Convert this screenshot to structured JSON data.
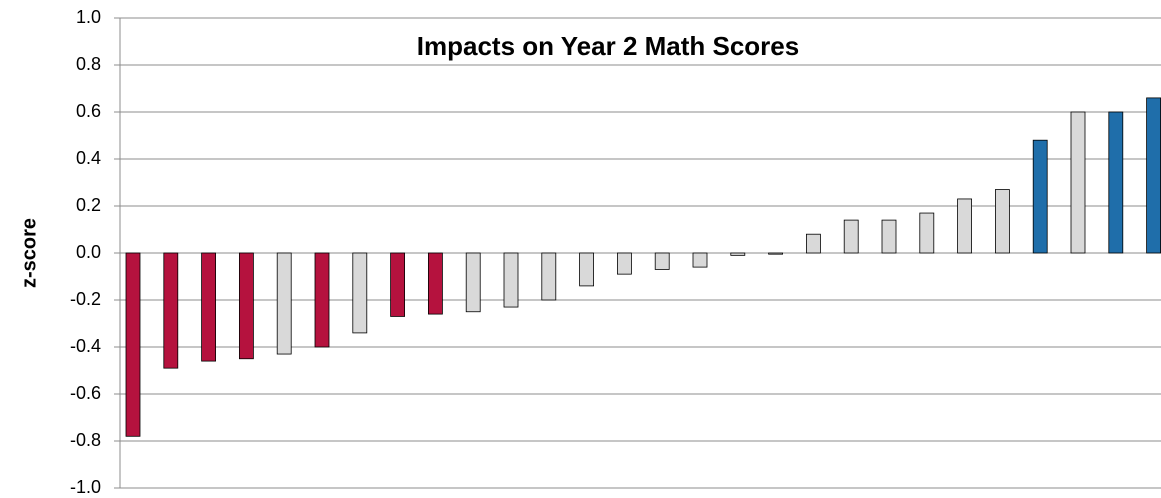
{
  "chart_data": {
    "type": "bar",
    "title": "Impacts on Year 2 Math Scores",
    "y_label": "z-score",
    "categories": [
      null,
      null,
      null,
      null,
      null,
      null,
      null,
      null,
      null,
      null,
      null,
      null,
      null,
      null,
      null,
      null,
      null,
      null,
      null,
      null,
      null,
      null,
      null,
      null,
      null,
      null,
      null,
      null
    ],
    "values": [
      -0.78,
      -0.49,
      -0.46,
      -0.45,
      -0.43,
      -0.4,
      -0.34,
      -0.27,
      -0.26,
      -0.25,
      -0.23,
      -0.2,
      -0.14,
      -0.09,
      -0.07,
      -0.06,
      -0.01,
      -0.005,
      0.08,
      0.14,
      0.14,
      0.17,
      0.23,
      0.27,
      0.48,
      0.6,
      0.6,
      0.66
    ],
    "colors": [
      "#b5123e",
      "#b5123e",
      "#b5123e",
      "#b5123e",
      "#d9d9d9",
      "#b5123e",
      "#d9d9d9",
      "#b5123e",
      "#b5123e",
      "#d9d9d9",
      "#d9d9d9",
      "#d9d9d9",
      "#d9d9d9",
      "#d9d9d9",
      "#d9d9d9",
      "#d9d9d9",
      "#d9d9d9",
      "#d9d9d9",
      "#d9d9d9",
      "#d9d9d9",
      "#d9d9d9",
      "#d9d9d9",
      "#d9d9d9",
      "#d9d9d9",
      "#1f6eaa",
      "#d9d9d9",
      "#1f6eaa",
      "#1f6eaa"
    ],
    "ylim": [
      -1.0,
      1.0
    ],
    "yticks": [
      {
        "value": -1.0,
        "label": "-1.0"
      },
      {
        "value": -0.8,
        "label": "-0.8"
      },
      {
        "value": -0.6,
        "label": "-0.6"
      },
      {
        "value": -0.4,
        "label": "-0.4"
      },
      {
        "value": -0.2,
        "label": "-0.2"
      },
      {
        "value": 0,
        "label": "0.0"
      },
      {
        "value": 0.2,
        "label": "0.2"
      },
      {
        "value": 0.4,
        "label": "0.4"
      },
      {
        "value": 0.6,
        "label": "0.6"
      },
      {
        "value": 0.8,
        "label": "0.8"
      },
      {
        "value": 1.0,
        "label": "1.0"
      }
    ],
    "grid": true
  }
}
